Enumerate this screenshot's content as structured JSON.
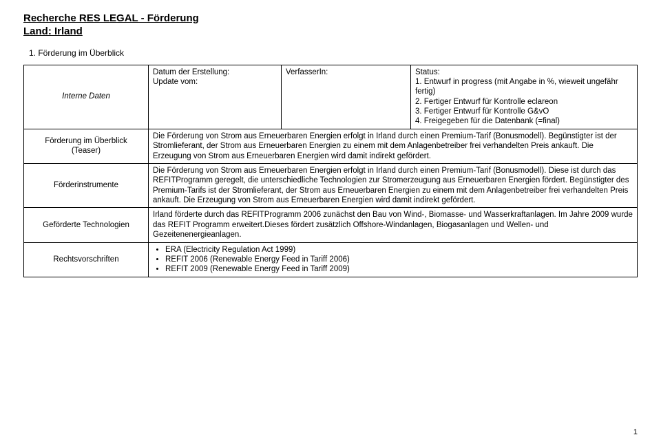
{
  "header": {
    "title_line1": "Recherche RES LEGAL - Förderung",
    "title_line2": "Land: Irland"
  },
  "section": {
    "number_title": "1.  Förderung im Überblick"
  },
  "metadata": {
    "row_label": "Interne Daten",
    "col1_line1": "Datum der Erstellung:",
    "col1_line2": "Update vom:",
    "col2_line1": "VerfasserIn:",
    "status_label": "Status:",
    "status_items": [
      "1. Entwurf in progress (mit Angabe in %, wieweit ungefähr fertig)",
      "2. Fertiger Entwurf für Kontrolle eclareon",
      "3. Fertiger Entwurf für Kontrolle G&vO",
      "4. Freigegeben für die Datenbank (=final)"
    ]
  },
  "rows": {
    "teaser": {
      "label_line1": "Förderung im Überblick",
      "label_line2": "(Teaser)",
      "text": "Die Förderung von Strom aus Erneuerbaren Energien erfolgt in Irland durch einen Premium-Tarif (Bonusmodell). Begünstigter ist der Stromlieferant, der Strom aus Erneuerbaren Energien zu einem mit dem Anlagenbetreiber frei verhandelten Preis ankauft. Die Erzeugung von Strom aus Erneuerbaren Energien wird damit indirekt gefördert."
    },
    "instrumente": {
      "label": "Förderinstrumente",
      "text": "Die Förderung von Strom aus Erneuerbaren Energien erfolgt in Irland durch einen Premium-Tarif (Bonusmodell). Diese ist durch das REFITProgramm geregelt, die unterschiedliche Technologien zur Stromerzeugung aus Erneuerbaren Energien fördert. Begünstigter des Premium-Tarifs ist der Stromlieferant, der Strom aus Erneuerbaren Energien zu einem mit dem Anlagenbetreiber frei verhandelten Preis ankauft. Die Erzeugung von Strom aus Erneuerbaren Energien wird damit indirekt gefördert."
    },
    "technologien": {
      "label": "Geförderte Technologien",
      "text": "Irland förderte durch das REFITProgramm 2006 zunächst den Bau von Wind-, Biomasse- und Wasserkraftanlagen. Im Jahre 2009 wurde das REFIT Programm erweitert.Dieses fördert zusätzlich Offshore-Windanlagen, Biogasanlagen und Wellen- und Gezeitenenergieanlagen."
    },
    "rechtsvorschriften": {
      "label": "Rechtsvorschriften",
      "items": [
        "ERA (Electricity Regulation Act 1999)",
        "REFIT 2006 (Renewable Energy Feed in Tariff 2006)",
        "REFIT 2009 (Renewable Energy Feed in Tariff 2009)"
      ]
    }
  },
  "page_number": "1"
}
